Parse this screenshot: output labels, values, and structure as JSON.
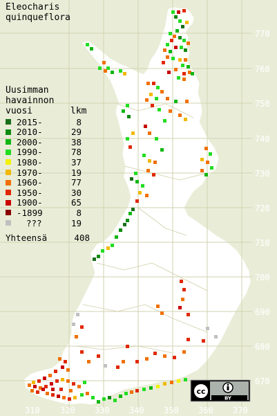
{
  "title_lines": [
    "Eleocharis",
    "quinqueflora"
  ],
  "legend_title_lines": [
    "Uusimman",
    "havainnon",
    "vuosi"
  ],
  "legend_count_header": "lkm",
  "legend": [
    {
      "label": "2015-",
      "count": "8",
      "color": "#1a6e1a"
    },
    {
      "label": "2010-",
      "count": "29",
      "color": "#118a11"
    },
    {
      "label": "2000-",
      "count": "38",
      "color": "#11b611"
    },
    {
      "label": "1990-",
      "count": "78",
      "color": "#22dd22"
    },
    {
      "label": "1980-",
      "count": "37",
      "color": "#f2f200"
    },
    {
      "label": "1970-",
      "count": "19",
      "color": "#f2b800"
    },
    {
      "label": "1960-",
      "count": "77",
      "color": "#f07000"
    },
    {
      "label": "1950-",
      "count": "30",
      "color": "#e02800"
    },
    {
      "label": "1900-",
      "count": "65",
      "color": "#c80000"
    },
    {
      "label": "-1899",
      "count": "8",
      "color": "#8a0000"
    },
    {
      "label": "???",
      "count": "19",
      "color": "#c0c0c0"
    }
  ],
  "total_label": "Yhteensä",
  "total_count": "408",
  "axis_y_labels": [
    "770",
    "760",
    "750",
    "740",
    "730",
    "720",
    "710",
    "700",
    "690",
    "680",
    "670"
  ],
  "axis_x_labels": [
    "310",
    "320",
    "330",
    "340",
    "350",
    "360",
    "370"
  ],
  "license_badge": {
    "cc_text": "cc",
    "by_text": "BY"
  },
  "colors": {
    "background": "#e9edd8",
    "land": "#ffffff",
    "grid": "#d2d2b0"
  }
}
